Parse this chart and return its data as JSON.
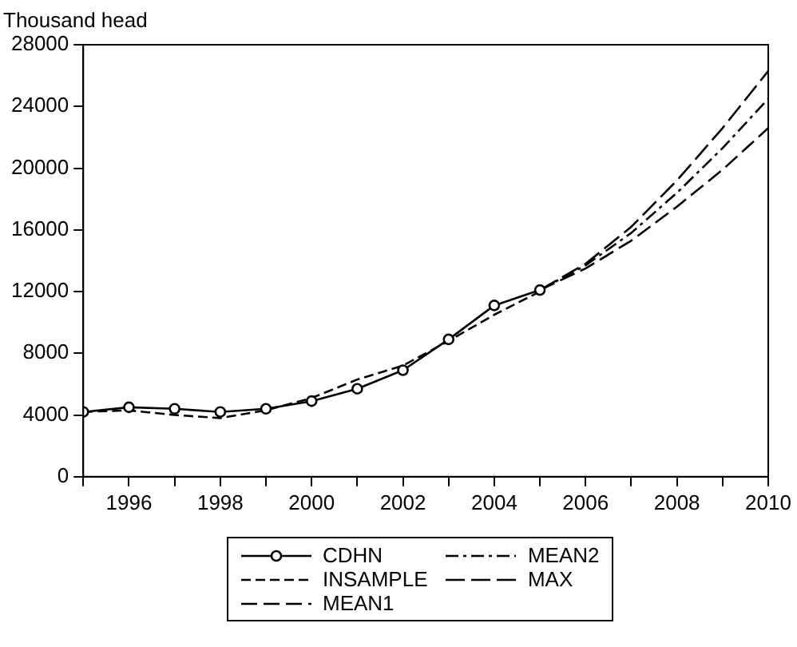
{
  "chart_data": {
    "type": "line",
    "ylabel": "Thousand head",
    "x": [
      1995,
      1996,
      1997,
      1998,
      1999,
      2000,
      2001,
      2002,
      2003,
      2004,
      2005,
      2006,
      2007,
      2008,
      2009,
      2010
    ],
    "xlim": [
      1995,
      2010
    ],
    "xticks": [
      {
        "value": 1995,
        "label": null
      },
      1996,
      {
        "value": 1997,
        "label": null
      },
      1998,
      {
        "value": 1999,
        "label": null
      },
      2000,
      {
        "value": 2001,
        "label": null
      },
      2002,
      {
        "value": 2003,
        "label": null
      },
      2004,
      {
        "value": 2005,
        "label": null
      },
      2006,
      {
        "value": 2007,
        "label": null
      },
      2008,
      {
        "value": 2009,
        "label": null
      },
      2010
    ],
    "ylim": [
      0,
      28000
    ],
    "yticks": [
      0,
      4000,
      8000,
      12000,
      16000,
      20000,
      24000,
      28000
    ],
    "grid": false,
    "legend": "bottom",
    "series": [
      {
        "name": "CDHN",
        "color": "#000000",
        "marker": "circle",
        "line_style": "solid",
        "values": [
          4200,
          4500,
          4400,
          4200,
          4400,
          4900,
          5700,
          6900,
          8900,
          11100,
          12100,
          null,
          null,
          null,
          null,
          null
        ]
      },
      {
        "name": "INSAMPLE",
        "color": "#000000",
        "marker": "none",
        "line_style": "dashed",
        "values": [
          4200,
          4300,
          4000,
          3800,
          4300,
          5100,
          6300,
          7200,
          8800,
          10500,
          12000,
          null,
          null,
          null,
          null,
          null
        ]
      },
      {
        "name": "MEAN1",
        "color": "#000000",
        "marker": "none",
        "line_style": "dashed",
        "values": [
          null,
          null,
          null,
          null,
          null,
          null,
          null,
          null,
          null,
          null,
          12100,
          13500,
          15300,
          17500,
          19900,
          22600
        ]
      },
      {
        "name": "MEAN2",
        "color": "#000000",
        "marker": "none",
        "line_style": "dashed",
        "values": [
          null,
          null,
          null,
          null,
          null,
          null,
          null,
          null,
          null,
          null,
          12100,
          13700,
          15800,
          18400,
          21300,
          24500
        ]
      },
      {
        "name": "MAX",
        "color": "#000000",
        "marker": "none",
        "line_style": "dashed",
        "values": [
          null,
          null,
          null,
          null,
          null,
          null,
          null,
          null,
          null,
          null,
          12100,
          13800,
          16200,
          19200,
          22600,
          26300
        ]
      }
    ]
  }
}
